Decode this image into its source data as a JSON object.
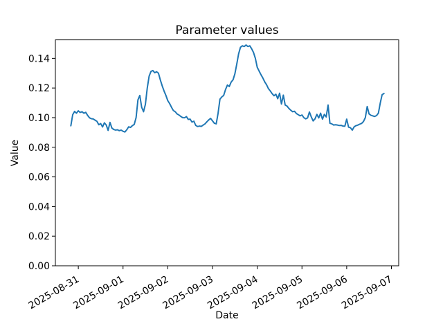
{
  "figure": {
    "title": "Parameter values",
    "xlabel": "Date",
    "ylabel": "Value"
  },
  "colors": {
    "line": "#1f77b4",
    "axis": "#000000",
    "background": "#ffffff"
  },
  "chart_data": {
    "type": "line",
    "title": "Parameter values",
    "xlabel": "Date",
    "ylabel": "Value",
    "grid": false,
    "legend": null,
    "x_start": "2025-08-30T20:00",
    "x_step_hours": 1,
    "xlim_hours": [
      -8.3,
      175.9
    ],
    "ylim": [
      0,
      0.1525
    ],
    "x_tick_hours": [
      4,
      28,
      52,
      76,
      100,
      124,
      148,
      172
    ],
    "x_tick_labels": [
      "2025-08-31",
      "2025-09-01",
      "2025-09-02",
      "2025-09-03",
      "2025-09-04",
      "2025-09-05",
      "2025-09-06",
      "2025-09-07"
    ],
    "y_ticks": [
      0,
      0.02,
      0.04,
      0.06,
      0.08,
      0.1,
      0.12,
      0.14
    ],
    "y_tick_labels": [
      "0.00",
      "0.02",
      "0.04",
      "0.06",
      "0.08",
      "0.10",
      "0.12",
      "0.14"
    ],
    "series": [
      {
        "name": "parameter-values",
        "color": "#1f77b4",
        "values": [
          0.0945,
          0.102,
          0.1042,
          0.103,
          0.1046,
          0.1035,
          0.104,
          0.103,
          0.1036,
          0.1015,
          0.0999,
          0.0993,
          0.0991,
          0.0983,
          0.0975,
          0.0952,
          0.096,
          0.0937,
          0.0965,
          0.095,
          0.0914,
          0.0968,
          0.093,
          0.092,
          0.0916,
          0.0918,
          0.0912,
          0.0916,
          0.0908,
          0.0903,
          0.0918,
          0.0938,
          0.0934,
          0.0946,
          0.0954,
          0.1,
          0.112,
          0.115,
          0.107,
          0.104,
          0.109,
          0.12,
          0.128,
          0.1312,
          0.1318,
          0.1303,
          0.131,
          0.13,
          0.1255,
          0.1215,
          0.118,
          0.115,
          0.1115,
          0.1095,
          0.107,
          0.1048,
          0.104,
          0.1025,
          0.1018,
          0.1008,
          0.1,
          0.0999,
          0.1007,
          0.0988,
          0.099,
          0.097,
          0.0976,
          0.0948,
          0.094,
          0.0943,
          0.0941,
          0.095,
          0.0958,
          0.0972,
          0.0985,
          0.0995,
          0.0978,
          0.0962,
          0.0958,
          0.103,
          0.1125,
          0.114,
          0.115,
          0.119,
          0.122,
          0.121,
          0.124,
          0.1255,
          0.1295,
          0.136,
          0.143,
          0.1475,
          0.1485,
          0.148,
          0.149,
          0.148,
          0.1485,
          0.1465,
          0.144,
          0.14,
          0.134,
          0.1315,
          0.129,
          0.1268,
          0.1242,
          0.1222,
          0.1196,
          0.118,
          0.1162,
          0.1148,
          0.1158,
          0.1128,
          0.1165,
          0.1092,
          0.1152,
          0.1085,
          0.1078,
          0.1062,
          0.105,
          0.104,
          0.1043,
          0.1028,
          0.102,
          0.1012,
          0.1018,
          0.1,
          0.0992,
          0.0998,
          0.1038,
          0.1005,
          0.0978,
          0.0992,
          0.1022,
          0.0998,
          0.103,
          0.099,
          0.1022,
          0.1005,
          0.1085,
          0.0962,
          0.0958,
          0.095,
          0.0952,
          0.095,
          0.0947,
          0.0948,
          0.0943,
          0.0942,
          0.099,
          0.0936,
          0.0932,
          0.0916,
          0.0938,
          0.0946,
          0.095,
          0.0956,
          0.0961,
          0.0974,
          0.1,
          0.1075,
          0.1025,
          0.1016,
          0.1012,
          0.1008,
          0.1014,
          0.103,
          0.1098,
          0.1155,
          0.1163
        ]
      }
    ]
  }
}
